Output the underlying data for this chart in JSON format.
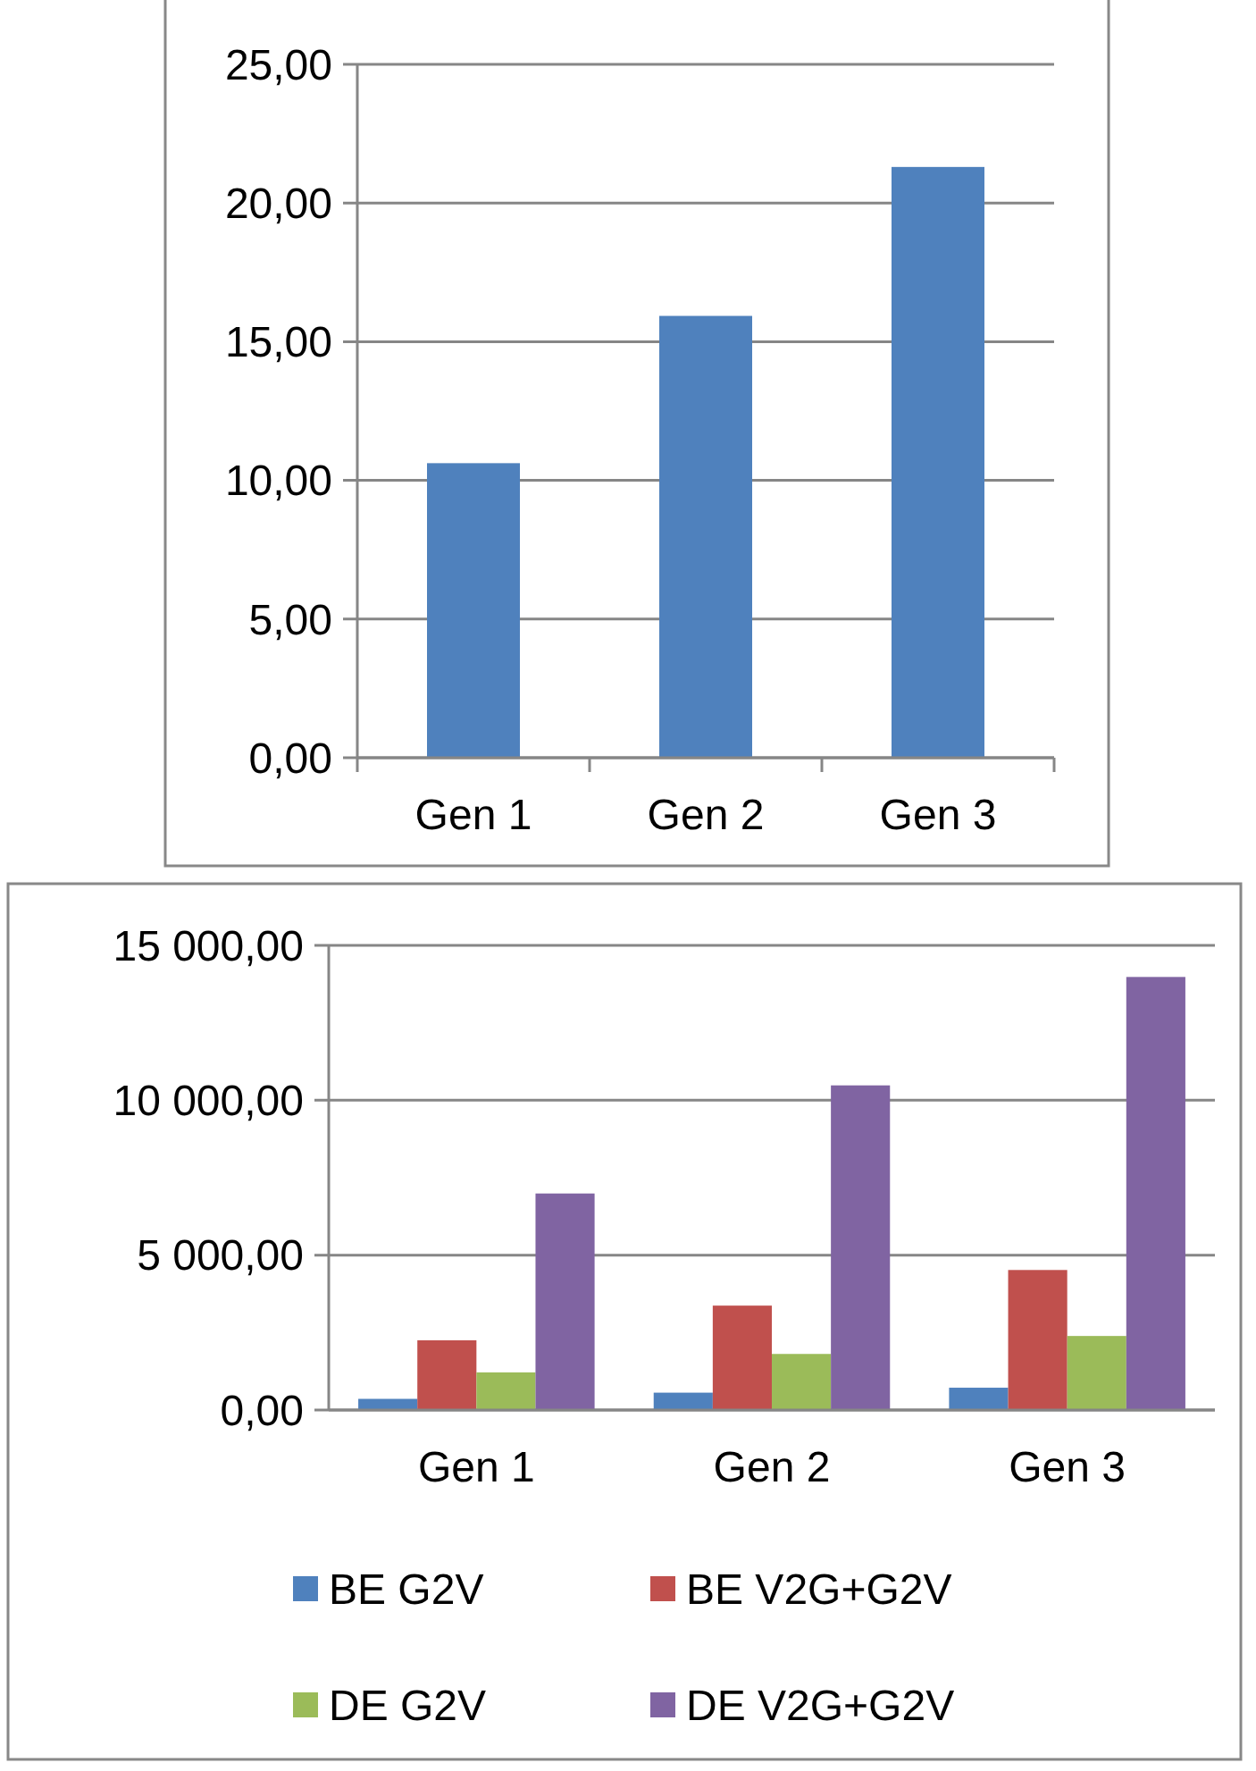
{
  "chart_data": [
    {
      "type": "bar",
      "categories": [
        "Gen 1",
        "Gen 2",
        "Gen 3"
      ],
      "values": [
        10.62,
        15.93,
        21.3
      ],
      "color": "#4f81bd",
      "ylim": [
        0,
        25
      ],
      "yticks": [
        {
          "value": 0,
          "label": "0,00"
        },
        {
          "value": 5,
          "label": "5,00"
        },
        {
          "value": 10,
          "label": "10,00"
        },
        {
          "value": 15,
          "label": "15,00"
        },
        {
          "value": 20,
          "label": "20,00"
        },
        {
          "value": 25,
          "label": "25,00"
        }
      ],
      "grid": "y",
      "legend": false
    },
    {
      "type": "bar",
      "categories": [
        "Gen 1",
        "Gen 2",
        "Gen 3"
      ],
      "series": [
        {
          "name": "BE G2V",
          "color": "#4f81bd",
          "values": [
            360,
            560,
            720
          ]
        },
        {
          "name": "BE V2G+G2V",
          "color": "#c0504d",
          "values": [
            2250,
            3370,
            4520
          ]
        },
        {
          "name": "DE G2V",
          "color": "#9bbb59",
          "values": [
            1215,
            1810,
            2390
          ]
        },
        {
          "name": "DE V2G+G2V",
          "color": "#8064a2",
          "values": [
            6990,
            10480,
            13980
          ]
        }
      ],
      "ylim": [
        0,
        15000
      ],
      "yticks": [
        {
          "value": 0,
          "label": "0,00"
        },
        {
          "value": 5000,
          "label": "5 000,00"
        },
        {
          "value": 10000,
          "label": "10 000,00"
        },
        {
          "value": 15000,
          "label": "15 000,00"
        }
      ],
      "grid": "y",
      "legend": "bottom"
    }
  ]
}
